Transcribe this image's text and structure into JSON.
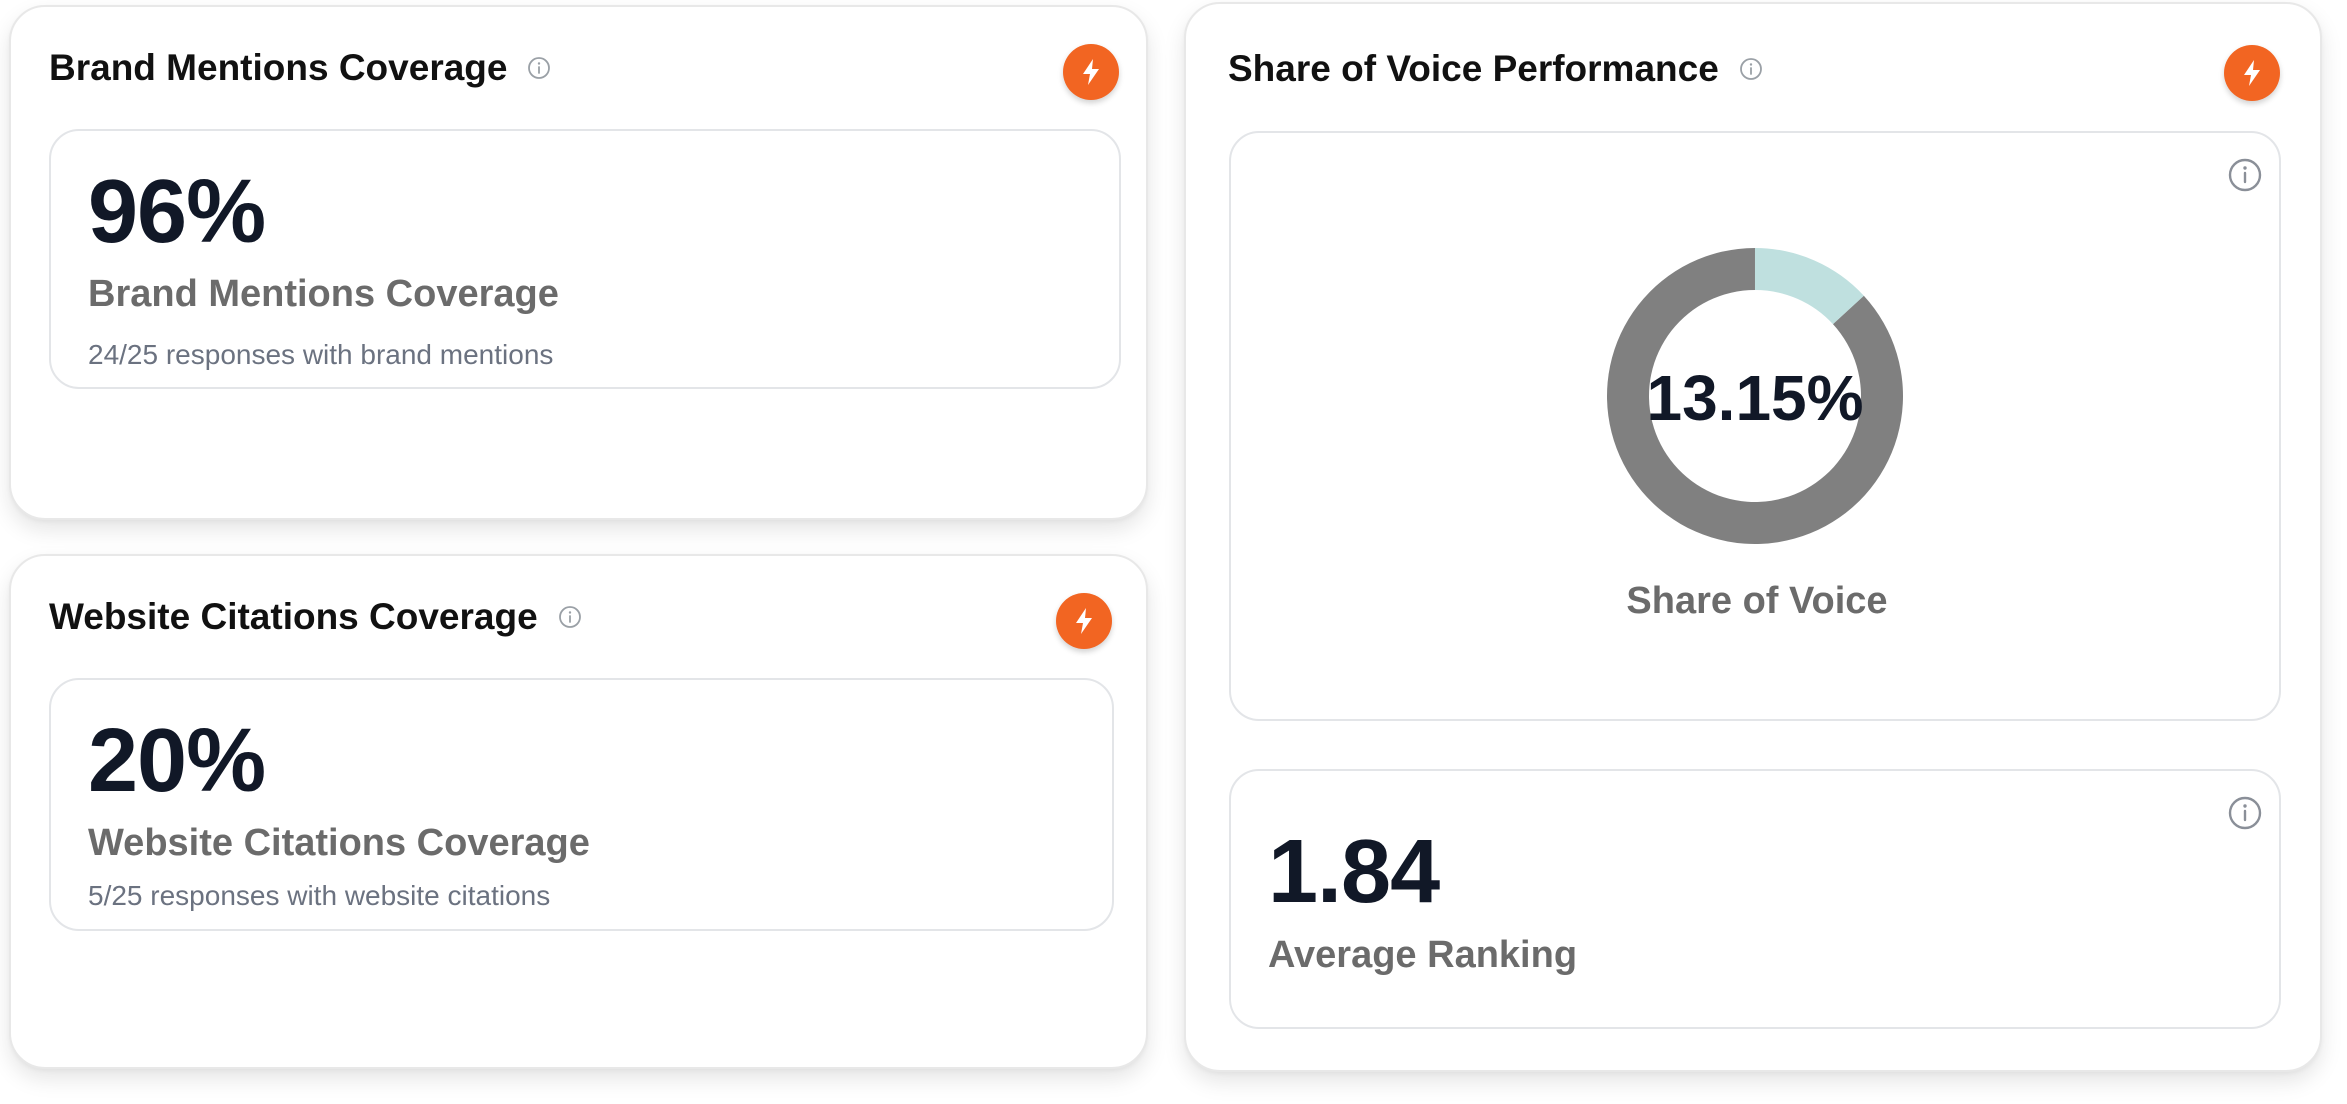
{
  "brand_mentions": {
    "title": "Brand Mentions Coverage",
    "value": "96%",
    "label": "Brand Mentions Coverage",
    "subtext": "24/25 responses with brand mentions"
  },
  "website_citations": {
    "title": "Website Citations Coverage",
    "value": "20%",
    "label": "Website Citations Coverage",
    "subtext": "5/25 responses with website citations"
  },
  "share_of_voice": {
    "title": "Share of Voice Performance",
    "donut": {
      "value_text": "13.15%",
      "fraction": 0.1315,
      "label": "Share of Voice",
      "colors": {
        "filled": "#bfe0df",
        "remaining": "#808080"
      }
    },
    "average_ranking": {
      "value": "1.84",
      "label": "Average Ranking"
    }
  },
  "icons": {
    "info": "info-circle-icon",
    "bolt": "lightning-bolt-icon"
  },
  "colors": {
    "accent": "#f26522",
    "text_dark": "#111827",
    "text_muted": "#6b6b6b",
    "border": "#e3e5e8"
  }
}
